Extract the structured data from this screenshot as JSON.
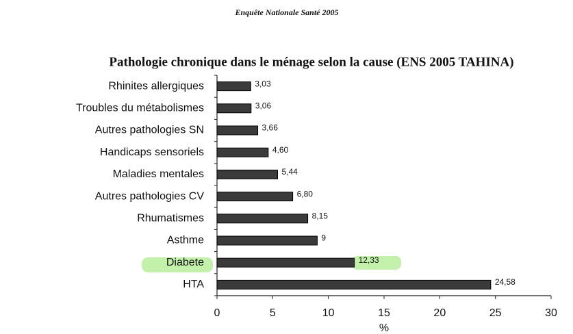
{
  "header": "Enquête Nationale Santé 2005",
  "chart_data": {
    "type": "bar",
    "orientation": "horizontal",
    "title": "Pathologie chronique dans le ménage selon la cause (ENS 2005 TAHINA)",
    "categories": [
      "Rhinites allergiques",
      "Troubles du métabolismes",
      "Autres pathologies SN",
      "Handicaps sensoriels",
      "Maladies mentales",
      "Autres pathologies CV",
      "Rhumatismes",
      "Asthme",
      "Diabete",
      "HTA"
    ],
    "values": [
      3.03,
      3.06,
      3.66,
      4.6,
      5.44,
      6.8,
      8.15,
      9,
      12.33,
      24.58
    ],
    "value_labels": [
      "3,03",
      "3,06",
      "3,66",
      "4,60",
      "5,44",
      "6,80",
      "8,15",
      "9",
      "12,33",
      "24,58"
    ],
    "color": "#3b3b3b",
    "xlabel": "%",
    "xlim": [
      0,
      30
    ],
    "xticks": [
      0,
      5,
      10,
      15,
      20,
      25,
      30
    ]
  }
}
